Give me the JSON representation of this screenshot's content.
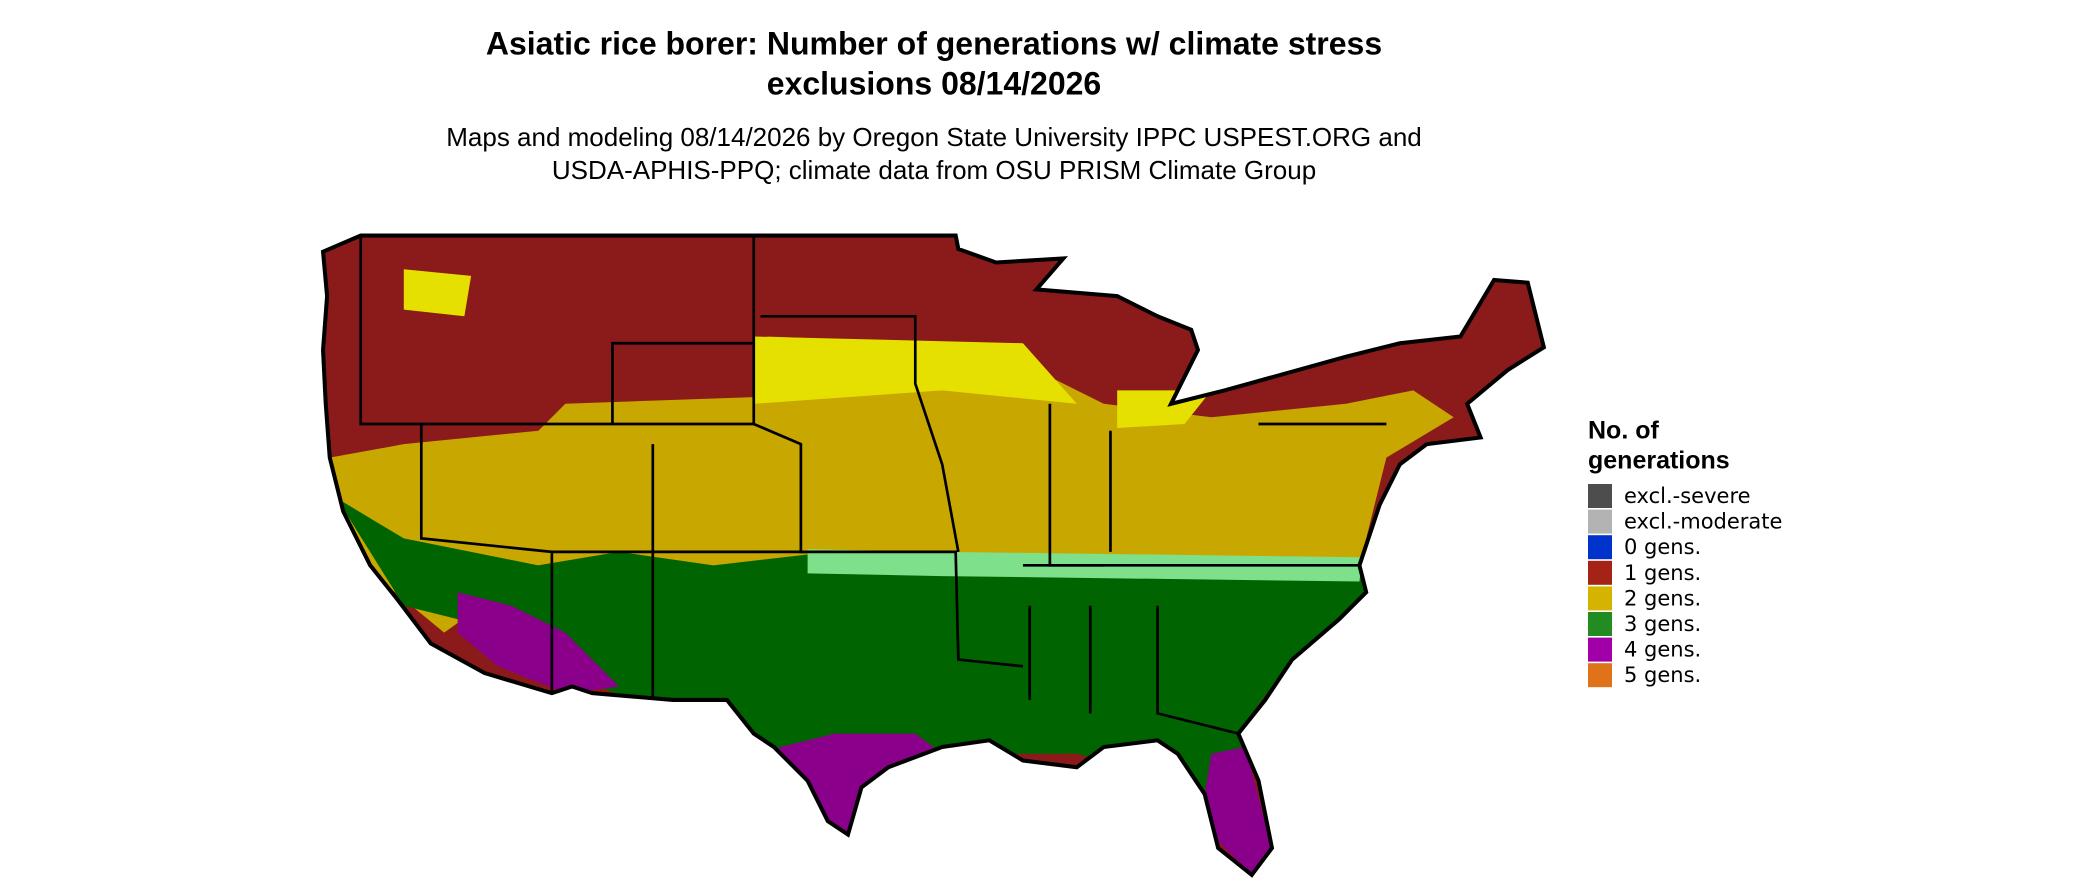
{
  "header": {
    "title_lines": [
      "Asiatic rice borer: Number of generations w/ climate stress",
      "exclusions 08/14/2026"
    ],
    "subtitle_lines": [
      "Maps and modeling 08/14/2026 by Oregon State University IPPC USPEST.ORG and",
      "USDA-APHIS-PPQ; climate data from OSU PRISM Climate Group"
    ]
  },
  "legend": {
    "title_lines": [
      "No. of",
      "generations"
    ],
    "items": [
      {
        "label": "excl.-severe",
        "color": "#4d4d4d"
      },
      {
        "label": "excl.-moderate",
        "color": "#b3b3b3"
      },
      {
        "label": "0 gens.",
        "color": "#0033cc"
      },
      {
        "label": "1 gens.",
        "color": "#a52314"
      },
      {
        "label": "2 gens.",
        "color": "#d4b400"
      },
      {
        "label": "3 gens.",
        "color": "#228b22"
      },
      {
        "label": "4 gens.",
        "color": "#a100a8"
      },
      {
        "label": "5 gens.",
        "color": "#e0731a"
      }
    ]
  }
}
